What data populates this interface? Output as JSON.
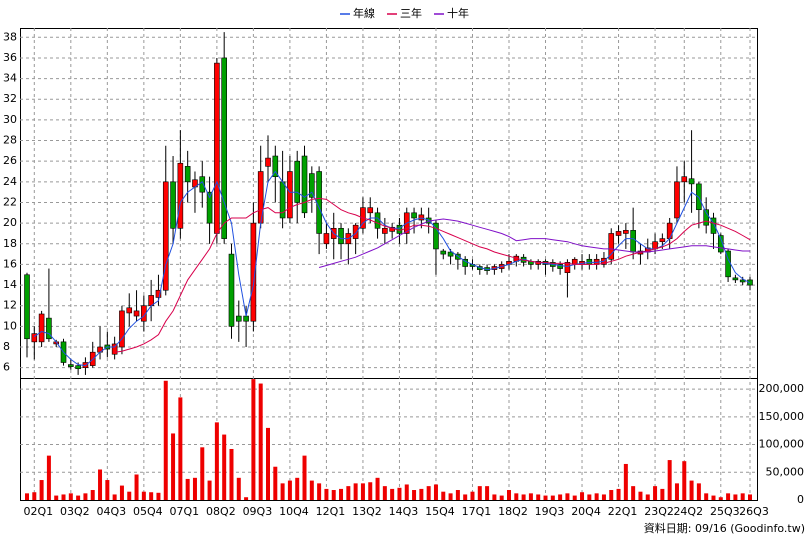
{
  "chart_data": {
    "type": "candlestick",
    "categories": [
      null,
      "02Q1",
      null,
      null,
      null,
      null,
      "03Q2",
      null,
      null,
      null,
      null,
      "04Q3",
      null,
      null,
      null,
      null,
      "05Q4",
      null,
      null,
      null,
      null,
      "07Q1",
      null,
      null,
      null,
      null,
      "08Q2",
      null,
      null,
      null,
      null,
      "09Q3",
      null,
      null,
      null,
      null,
      "10Q4",
      null,
      null,
      null,
      null,
      "12Q1",
      null,
      null,
      null,
      null,
      "13Q2",
      null,
      null,
      null,
      null,
      "14Q3",
      null,
      null,
      null,
      null,
      "15Q4",
      null,
      null,
      null,
      null,
      "17Q1",
      null,
      null,
      null,
      null,
      "18Q2",
      null,
      null,
      null,
      null,
      "19Q3",
      null,
      null,
      null,
      null,
      "20Q4",
      null,
      null,
      null,
      null,
      "22Q1",
      null,
      null,
      null,
      null,
      "23Q2",
      null,
      null,
      null,
      "24Q2",
      null,
      null,
      null,
      null,
      "25Q3",
      null,
      null,
      null,
      "26Q3"
    ],
    "open": [
      15,
      8.5,
      8.5,
      10.8,
      8.3,
      8.5,
      6.3,
      6.2,
      6,
      6.2,
      7.5,
      8.2,
      7.3,
      8,
      11.3,
      11,
      10.5,
      12,
      12.8,
      13.5,
      24,
      19.5,
      25.5,
      23.5,
      24.5,
      23,
      19,
      36,
      17,
      11,
      11,
      10.5,
      20,
      25.5,
      26.5,
      24,
      20.5,
      26,
      26.5,
      24.8,
      25,
      18,
      18.5,
      19.5,
      18,
      18.5,
      19.5,
      21,
      21,
      19,
      19.2,
      19.8,
      19,
      21,
      20.3,
      20.5,
      20,
      17.3,
      17.2,
      17,
      16.5,
      16,
      15.8,
      15.7,
      15.5,
      15.6,
      16,
      16.3,
      16.7,
      16.3,
      16,
      16.3,
      16.2,
      16,
      15.2,
      16,
      16,
      16.5,
      16,
      16,
      16.5,
      18.8,
      19,
      19.3,
      17,
      17.2,
      17.5,
      18.2,
      18.5,
      20.5,
      24,
      24.3,
      23.8,
      21.3,
      20.5,
      18.8,
      17.3,
      14.7,
      14.5,
      14.5
    ],
    "high": [
      15.2,
      10,
      11.5,
      15.6,
      8.7,
      8.8,
      6.8,
      6.5,
      7,
      8.5,
      10,
      9.5,
      9,
      12,
      13.2,
      13.5,
      13,
      14.5,
      15,
      27.5,
      26.5,
      29,
      27,
      25,
      26,
      24.5,
      36,
      38.5,
      18,
      12.5,
      12,
      22,
      27.5,
      28.5,
      27.5,
      27,
      26.5,
      27,
      27.5,
      25.5,
      25.5,
      20,
      21,
      20,
      19.5,
      20,
      22.5,
      22.5,
      21.5,
      20.5,
      20,
      20.5,
      21.5,
      21.5,
      21.5,
      21.5,
      20.3,
      17.5,
      17.5,
      17.2,
      16.8,
      16.5,
      16,
      16,
      16,
      16.3,
      17,
      17,
      17,
      16.5,
      16.5,
      16.5,
      16.5,
      16.3,
      16.5,
      16.7,
      17,
      17,
      17,
      17.2,
      19.5,
      19.8,
      20,
      21.5,
      18,
      18.5,
      19,
      19,
      20.5,
      25.5,
      26,
      29,
      24,
      22.5,
      21,
      19,
      17.5,
      15,
      14.8,
      14.8
    ],
    "low": [
      7,
      6.8,
      8,
      8.5,
      8,
      6.2,
      5.8,
      5.3,
      5.3,
      6,
      6.8,
      7,
      6.8,
      7.3,
      10,
      10.5,
      9.5,
      10.5,
      12,
      13,
      18,
      18.5,
      22,
      21,
      21.5,
      18,
      18,
      18,
      8.8,
      8.5,
      8,
      9.5,
      19.5,
      24,
      22,
      19.5,
      20,
      20,
      20.5,
      21,
      17,
      17.5,
      16.5,
      16.5,
      16,
      17,
      19,
      20,
      18.5,
      18,
      18.5,
      18,
      18,
      19,
      19.5,
      19,
      15,
      16.5,
      16,
      15.5,
      15,
      15.5,
      15,
      15,
      15,
      15.2,
      15.5,
      15.8,
      15.8,
      15.5,
      15.5,
      15,
      15.3,
      15,
      12.8,
      15.5,
      15.5,
      15.5,
      15.5,
      15.7,
      16,
      18,
      17.5,
      16.5,
      16,
      16.5,
      17,
      17.5,
      17.5,
      20,
      22,
      21,
      19.5,
      19,
      17.5,
      17,
      14.3,
      14.2,
      14,
      13.5
    ],
    "close": [
      8.8,
      9.3,
      11.2,
      8.8,
      8.5,
      6.5,
      6.1,
      5.9,
      6.5,
      7.5,
      8,
      7.8,
      8.3,
      11.5,
      11.8,
      11.5,
      12,
      13,
      13.5,
      24,
      19.5,
      25.8,
      24,
      24.2,
      23,
      20,
      35.5,
      18.5,
      10,
      10.5,
      10.5,
      20,
      25,
      26.3,
      24.5,
      20.5,
      25,
      22,
      21,
      22.5,
      19,
      19,
      19.5,
      18,
      19,
      19.8,
      21.5,
      21.5,
      19.5,
      19.5,
      19.6,
      19,
      21,
      20.5,
      20.8,
      20,
      17.5,
      17,
      16.8,
      16.5,
      15.8,
      15.8,
      15.5,
      15.4,
      15.8,
      16,
      16.3,
      16.8,
      16.2,
      16,
      16.3,
      16,
      15.8,
      15.6,
      16.2,
      16.5,
      16.3,
      16,
      16.5,
      16.6,
      19,
      19.2,
      19.3,
      17.2,
      17.3,
      17.6,
      18.2,
      18.5,
      20,
      24,
      24.5,
      23.8,
      21.3,
      19.8,
      19,
      17.2,
      14.8,
      14.5,
      14.3,
      14
    ],
    "up_color": "#ff0000",
    "down_color": "#00a000",
    "ylim": [
      5,
      38.9
    ],
    "yticks": [
      6,
      8,
      10,
      12,
      14,
      16,
      18,
      20,
      22,
      24,
      26,
      28,
      30,
      32,
      34,
      36,
      38
    ],
    "grid": true,
    "series": [
      {
        "name": "年線",
        "color": "#2050e0",
        "values": [
          null,
          9,
          9.5,
          9.3,
          8.5,
          7.5,
          6.8,
          6.3,
          6.2,
          6.8,
          7.5,
          8,
          8,
          8.8,
          9.8,
          10.5,
          11,
          12,
          12.5,
          16,
          18,
          22,
          23,
          23.5,
          24,
          22.5,
          24,
          22,
          20,
          15,
          11,
          14,
          20,
          24,
          25,
          24,
          23,
          23,
          22.5,
          23,
          21.5,
          20,
          19,
          18.5,
          18.5,
          19,
          20,
          20.5,
          20.5,
          19.8,
          19.5,
          19.5,
          20,
          20.3,
          20.5,
          20.3,
          19.5,
          18.5,
          17.3,
          16.8,
          16.3,
          16,
          15.7,
          15.5,
          15.6,
          15.8,
          16,
          16.3,
          16.5,
          16.3,
          16.2,
          16.1,
          16,
          15.9,
          15.8,
          16,
          16.1,
          16.2,
          16.2,
          16.3,
          17,
          17.8,
          18.5,
          18.5,
          18,
          17.5,
          17.5,
          17.8,
          18.5,
          20,
          21.5,
          23,
          22.5,
          21,
          20,
          18.5,
          16.5,
          15.2,
          14.6,
          14.2
        ]
      },
      {
        "name": "三年",
        "color": "#d8004c",
        "values": [
          null,
          null,
          null,
          null,
          null,
          null,
          null,
          null,
          null,
          null,
          null,
          null,
          7.5,
          7.6,
          7.8,
          8,
          8.3,
          8.7,
          9.2,
          10.5,
          11.5,
          13,
          14.5,
          15.5,
          16.5,
          17.5,
          19,
          20,
          20.5,
          20.5,
          20.5,
          21,
          21.3,
          21.5,
          21,
          21,
          21.5,
          21.8,
          22,
          22.3,
          22.4,
          22.3,
          21.8,
          21.3,
          21,
          20.8,
          20.5,
          20.3,
          20,
          19.7,
          19.5,
          19.3,
          19.5,
          19.8,
          19.8,
          19.7,
          19.5,
          19.2,
          18.9,
          18.6,
          18.3,
          18,
          17.7,
          17.5,
          17.2,
          17,
          16.8,
          16.6,
          16.4,
          16.3,
          16.2,
          16.2,
          16.1,
          16.1,
          16.1,
          16,
          16,
          16,
          16,
          16.1,
          16.3,
          16.5,
          16.8,
          17,
          17.2,
          17.3,
          17.5,
          17.7,
          18,
          18.5,
          19.2,
          19.8,
          20,
          20.2,
          20,
          19.8,
          19.5,
          19.2,
          18.8,
          18.4
        ]
      },
      {
        "name": "十年",
        "color": "#8010c8",
        "values": [
          null,
          null,
          null,
          null,
          null,
          null,
          null,
          null,
          null,
          null,
          null,
          null,
          null,
          null,
          null,
          null,
          null,
          null,
          null,
          null,
          null,
          null,
          null,
          null,
          null,
          null,
          null,
          null,
          null,
          null,
          null,
          null,
          null,
          null,
          null,
          null,
          null,
          null,
          null,
          null,
          15.7,
          15.9,
          16.1,
          16.3,
          16.5,
          16.7,
          17,
          17.3,
          17.6,
          18,
          18.4,
          18.8,
          19.2,
          19.6,
          19.9,
          20.2,
          20.3,
          20.4,
          20.3,
          20.2,
          20,
          19.8,
          19.6,
          19.4,
          19.2,
          19,
          18.7,
          18.3,
          18.4,
          18.5,
          18.5,
          18.5,
          18.4,
          18.3,
          18.2,
          18,
          17.8,
          17.7,
          17.6,
          17.5,
          17.5,
          17.4,
          17.3,
          17.2,
          17.2,
          17.2,
          17.3,
          17.4,
          17.5,
          17.6,
          17.7,
          17.8,
          17.8,
          17.8,
          17.7,
          17.6,
          17.5,
          17.4,
          17.3,
          17.3
        ]
      }
    ],
    "volume": {
      "color": "#ee0000",
      "ylim": [
        0,
        220000
      ],
      "yticks": [
        0,
        {
          "value": 50000,
          "label": "50,000"
        },
        {
          "value": 100000,
          "label": "100,000"
        },
        {
          "value": 150000,
          "label": "150,000"
        },
        {
          "value": 200000,
          "label": "200,000"
        }
      ],
      "values": [
        12000,
        14000,
        36000,
        80000,
        8000,
        10000,
        12000,
        8000,
        12000,
        18000,
        55000,
        36000,
        10000,
        26000,
        15000,
        46000,
        15000,
        14000,
        13000,
        215000,
        120000,
        185000,
        38000,
        40000,
        95000,
        35000,
        140000,
        118000,
        92000,
        40000,
        5000,
        218000,
        210000,
        130000,
        60000,
        30000,
        35000,
        40000,
        80000,
        35000,
        30000,
        20000,
        18000,
        20000,
        25000,
        30000,
        30000,
        32000,
        40000,
        25000,
        20000,
        22000,
        28000,
        18000,
        20000,
        25000,
        28000,
        15000,
        12000,
        18000,
        10000,
        15000,
        25000,
        25000,
        10000,
        8000,
        18000,
        12000,
        10000,
        12000,
        10000,
        8000,
        8000,
        10000,
        12000,
        8000,
        14000,
        10000,
        12000,
        10000,
        18000,
        20000,
        65000,
        25000,
        15000,
        10000,
        25000,
        20000,
        72000,
        30000,
        70000,
        35000,
        30000,
        12000,
        8000,
        5000,
        12000,
        10000,
        12000,
        10000
      ]
    },
    "footnote": "資料日期: 09/16 (Goodinfo.tw)"
  }
}
